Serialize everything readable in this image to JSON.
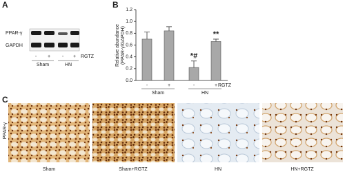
{
  "panel_labels": [
    "A",
    "B",
    "C"
  ],
  "blot": {
    "rows": [
      "PPAR-γ",
      "GAPDH"
    ],
    "lanes": [
      "-",
      "+",
      "-",
      "+"
    ],
    "groups": [
      "Sham",
      "HN"
    ],
    "treatment": "RGTZ"
  },
  "chart_data": {
    "type": "bar",
    "ylabel": [
      "Relative abundance",
      "(PPAR-γ/GAPDH)"
    ],
    "categories": [
      "-",
      "+",
      "-",
      "+"
    ],
    "groups": [
      "Sham",
      "HN"
    ],
    "factor_label": "RGTZ",
    "values": [
      0.7,
      0.84,
      0.22,
      0.66
    ],
    "errors": [
      0.12,
      0.07,
      0.11,
      0.04
    ],
    "value_annotations": [
      null,
      null,
      "*#",
      "**"
    ],
    "color": "#a8a8a8",
    "ylim": [
      0,
      1.2
    ],
    "yticks": [
      {
        "value": 0,
        "label": "0.0"
      },
      {
        "value": 0.2,
        "label": "0.2"
      },
      {
        "value": 0.4,
        "label": "0.4"
      },
      {
        "value": 0.6,
        "label": "0.6"
      },
      {
        "value": 0.8,
        "label": "0.8"
      },
      {
        "value": 1.0,
        "label": "1.0"
      },
      {
        "value": 1.2,
        "label": "1.2"
      }
    ]
  },
  "micrographs": {
    "stain": "PPAR-γ",
    "captions": [
      "Sham",
      "Sham+RGTZ",
      "HN",
      "HN+RGTZ"
    ]
  }
}
